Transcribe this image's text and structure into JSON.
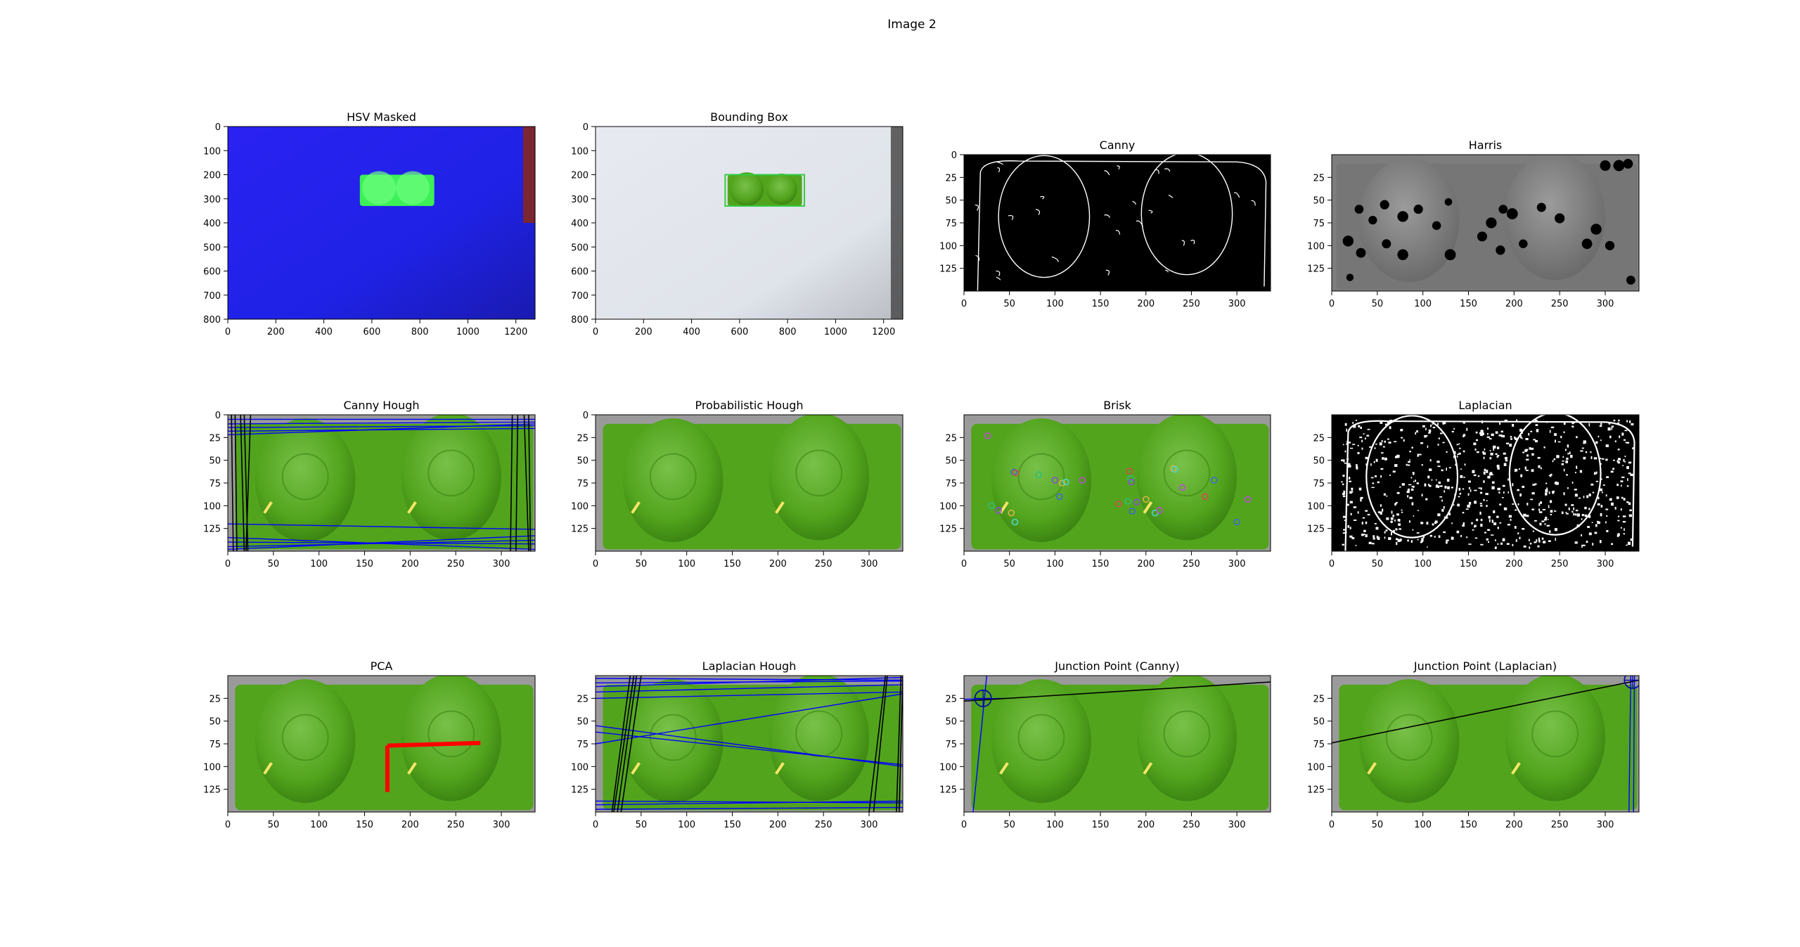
{
  "figure_title": "Image 2",
  "colors": {
    "hsv_blue": "#1f22e6",
    "mask_green": "#3df057",
    "rim_red": "#7a2633",
    "photo_bg": "#dfe3ea",
    "product_green": "#52a41d",
    "product_dark": "#3c8612",
    "product_light": "#79c14a",
    "shelf_grey": "#9a9a9a",
    "hough_blue": "#0000ff",
    "line_black": "#000000",
    "pca_red": "#ff0000",
    "bbox_green": "#33cc44"
  },
  "chart_data": [
    {
      "id": "hsv",
      "type": "image",
      "title": "HSV Masked",
      "content": "hsv",
      "xlim": [
        0,
        1280
      ],
      "ylim": [
        800,
        0
      ],
      "xticks": [
        0,
        200,
        400,
        600,
        800,
        1000,
        1200
      ],
      "yticks": [
        0,
        100,
        200,
        300,
        400,
        500,
        600,
        700,
        800
      ]
    },
    {
      "id": "bbox",
      "type": "image",
      "title": "Bounding Box",
      "content": "bbox",
      "xlim": [
        0,
        1280
      ],
      "ylim": [
        800,
        0
      ],
      "xticks": [
        0,
        200,
        400,
        600,
        800,
        1000,
        1200
      ],
      "yticks": [
        0,
        100,
        200,
        300,
        400,
        500,
        600,
        700,
        800
      ],
      "bbox": [
        [
          540,
          200
        ],
        [
          870,
          330
        ]
      ]
    },
    {
      "id": "canny",
      "type": "image",
      "title": "Canny",
      "content": "canny",
      "xlim": [
        0,
        337
      ],
      "ylim": [
        150,
        0
      ],
      "xticks": [
        0,
        50,
        100,
        150,
        200,
        250,
        300
      ],
      "yticks": [
        0,
        25,
        50,
        75,
        100,
        125
      ]
    },
    {
      "id": "harris",
      "type": "image",
      "title": "Harris",
      "content": "harris",
      "xlim": [
        0,
        337
      ],
      "ylim": [
        150,
        0
      ],
      "xticks": [
        0,
        50,
        100,
        150,
        200,
        250,
        300
      ],
      "yticks": [
        25,
        50,
        75,
        100,
        125
      ],
      "corners": [
        [
          30,
          60
        ],
        [
          45,
          72
        ],
        [
          58,
          55
        ],
        [
          78,
          68
        ],
        [
          95,
          60
        ],
        [
          115,
          78
        ],
        [
          128,
          52
        ],
        [
          18,
          95
        ],
        [
          32,
          108
        ],
        [
          60,
          98
        ],
        [
          78,
          110
        ],
        [
          165,
          90
        ],
        [
          188,
          60
        ],
        [
          198,
          65
        ],
        [
          175,
          75
        ],
        [
          210,
          98
        ],
        [
          230,
          58
        ],
        [
          250,
          70
        ],
        [
          280,
          98
        ],
        [
          290,
          82
        ],
        [
          305,
          100
        ],
        [
          315,
          12
        ],
        [
          325,
          10
        ],
        [
          300,
          12
        ],
        [
          328,
          138
        ],
        [
          20,
          135
        ],
        [
          130,
          110
        ],
        [
          185,
          105
        ]
      ]
    },
    {
      "id": "cannyhough",
      "type": "image",
      "title": "Canny Hough",
      "content": "product",
      "xlim": [
        0,
        337
      ],
      "ylim": [
        150,
        0
      ],
      "xticks": [
        0,
        50,
        100,
        150,
        200,
        250,
        300
      ],
      "yticks": [
        0,
        25,
        50,
        75,
        100,
        125
      ],
      "blue_lines": [
        [
          0,
          5,
          337,
          5
        ],
        [
          0,
          10,
          337,
          8
        ],
        [
          0,
          14,
          337,
          12
        ],
        [
          0,
          18,
          337,
          15
        ],
        [
          0,
          22,
          337,
          10
        ],
        [
          0,
          140,
          337,
          142
        ],
        [
          0,
          145,
          337,
          138
        ],
        [
          0,
          135,
          337,
          148
        ],
        [
          0,
          148,
          337,
          133
        ],
        [
          0,
          120,
          337,
          126
        ]
      ],
      "black_lines": [
        [
          4,
          0,
          6,
          150
        ],
        [
          8,
          0,
          10,
          150
        ],
        [
          14,
          0,
          18,
          150
        ],
        [
          18,
          0,
          22,
          150
        ],
        [
          25,
          0,
          20,
          150
        ],
        [
          312,
          0,
          310,
          150
        ],
        [
          318,
          0,
          316,
          150
        ],
        [
          325,
          0,
          330,
          150
        ],
        [
          330,
          0,
          332,
          150
        ]
      ]
    },
    {
      "id": "probhough",
      "type": "image",
      "title": "Probabilistic Hough",
      "content": "product",
      "xlim": [
        0,
        337
      ],
      "ylim": [
        150,
        0
      ],
      "xticks": [
        0,
        50,
        100,
        150,
        200,
        250,
        300
      ],
      "yticks": [
        0,
        25,
        50,
        75,
        100,
        125
      ]
    },
    {
      "id": "brisk",
      "type": "image",
      "title": "Brisk",
      "content": "product",
      "xlim": [
        0,
        337
      ],
      "ylim": [
        150,
        0
      ],
      "xticks": [
        0,
        50,
        100,
        150,
        200,
        250,
        300
      ],
      "yticks": [
        25,
        50,
        75,
        100,
        125
      ],
      "keypoints": [
        [
          26,
          23
        ],
        [
          55,
          63
        ],
        [
          57,
          64
        ],
        [
          82,
          66
        ],
        [
          100,
          72
        ],
        [
          108,
          75
        ],
        [
          112,
          74
        ],
        [
          130,
          72
        ],
        [
          105,
          90
        ],
        [
          182,
          62
        ],
        [
          183,
          70
        ],
        [
          184,
          74
        ],
        [
          230,
          59
        ],
        [
          232,
          60
        ],
        [
          240,
          80
        ],
        [
          275,
          72
        ],
        [
          265,
          90
        ],
        [
          180,
          95
        ],
        [
          190,
          96
        ],
        [
          200,
          93
        ],
        [
          210,
          108
        ],
        [
          215,
          105
        ],
        [
          185,
          106
        ],
        [
          170,
          98
        ],
        [
          30,
          100
        ],
        [
          38,
          105
        ],
        [
          52,
          108
        ],
        [
          56,
          118
        ],
        [
          312,
          93
        ],
        [
          300,
          118
        ]
      ],
      "keypoint_colors": [
        "#c04bd8",
        "#3d6bd6",
        "#d64b4b",
        "#2bbf7a",
        "#8a4bd6",
        "#d6b44b",
        "#4bd6d0"
      ]
    },
    {
      "id": "laplacian",
      "type": "image",
      "title": "Laplacian",
      "content": "laplacian",
      "xlim": [
        0,
        337
      ],
      "ylim": [
        150,
        0
      ],
      "xticks": [
        0,
        50,
        100,
        150,
        200,
        250,
        300
      ],
      "yticks": [
        25,
        50,
        75,
        100,
        125
      ]
    },
    {
      "id": "pca",
      "type": "image",
      "title": "PCA",
      "content": "product",
      "xlim": [
        0,
        337
      ],
      "ylim": [
        150,
        0
      ],
      "xticks": [
        0,
        50,
        100,
        150,
        200,
        250,
        300
      ],
      "yticks": [
        25,
        50,
        75,
        100,
        125
      ],
      "axes": [
        [
          175,
          77,
          277,
          74
        ],
        [
          175,
          77,
          175,
          128
        ]
      ]
    },
    {
      "id": "laphough",
      "type": "image",
      "title": "Laplacian Hough",
      "content": "product",
      "xlim": [
        0,
        337
      ],
      "ylim": [
        150,
        0
      ],
      "xticks": [
        0,
        50,
        100,
        150,
        200,
        250,
        300
      ],
      "yticks": [
        25,
        50,
        75,
        100,
        125
      ],
      "blue_lines": [
        [
          0,
          3,
          337,
          5
        ],
        [
          0,
          8,
          337,
          6
        ],
        [
          0,
          12,
          337,
          2
        ],
        [
          0,
          18,
          337,
          10
        ],
        [
          0,
          25,
          337,
          18
        ],
        [
          0,
          55,
          337,
          100
        ],
        [
          0,
          75,
          337,
          20
        ],
        [
          0,
          62,
          337,
          98
        ],
        [
          0,
          138,
          337,
          140
        ],
        [
          0,
          142,
          337,
          138
        ],
        [
          0,
          147,
          337,
          145
        ]
      ],
      "black_lines": [
        [
          20,
          150,
          42,
          0
        ],
        [
          24,
          150,
          45,
          0
        ],
        [
          28,
          150,
          50,
          0
        ],
        [
          18,
          150,
          38,
          0
        ],
        [
          300,
          150,
          318,
          0
        ],
        [
          305,
          150,
          320,
          0
        ],
        [
          330,
          150,
          335,
          0
        ],
        [
          333,
          150,
          337,
          0
        ]
      ]
    },
    {
      "id": "junctioncanny",
      "type": "image",
      "title": "Junction Point (Canny)",
      "content": "product",
      "xlim": [
        0,
        337
      ],
      "ylim": [
        150,
        0
      ],
      "xticks": [
        0,
        50,
        100,
        150,
        200,
        250,
        300
      ],
      "yticks": [
        25,
        50,
        75,
        100,
        125
      ],
      "black_lines": [
        [
          0,
          28,
          337,
          7
        ]
      ],
      "blue_lines": [
        [
          25,
          0,
          10,
          150
        ],
        [
          0,
          26,
          45,
          25
        ]
      ],
      "junction": [
        21,
        25
      ],
      "junction_radius": 9
    },
    {
      "id": "junctionlap",
      "type": "image",
      "title": "Junction Point (Laplacian)",
      "content": "product",
      "xlim": [
        0,
        337
      ],
      "ylim": [
        150,
        0
      ],
      "xticks": [
        0,
        50,
        100,
        150,
        200,
        250,
        300
      ],
      "yticks": [
        25,
        50,
        75,
        100,
        125
      ],
      "black_lines": [
        [
          0,
          74,
          337,
          5
        ]
      ],
      "blue_lines": [
        [
          328,
          0,
          326,
          150
        ],
        [
          332,
          0,
          331,
          150
        ]
      ],
      "junction": [
        330,
        5
      ],
      "junction_radius": 9
    }
  ]
}
